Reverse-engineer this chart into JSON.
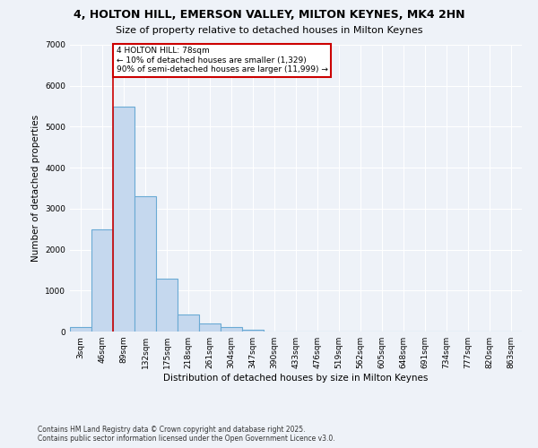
{
  "title_line1": "4, HOLTON HILL, EMERSON VALLEY, MILTON KEYNES, MK4 2HN",
  "title_line2": "Size of property relative to detached houses in Milton Keynes",
  "xlabel": "Distribution of detached houses by size in Milton Keynes",
  "ylabel": "Number of detached properties",
  "bar_color": "#c5d8ee",
  "bar_edge_color": "#6aaad4",
  "categories": [
    "3sqm",
    "46sqm",
    "89sqm",
    "132sqm",
    "175sqm",
    "218sqm",
    "261sqm",
    "304sqm",
    "347sqm",
    "390sqm",
    "433sqm",
    "476sqm",
    "519sqm",
    "562sqm",
    "605sqm",
    "648sqm",
    "691sqm",
    "734sqm",
    "777sqm",
    "820sqm",
    "863sqm"
  ],
  "values": [
    100,
    2500,
    5500,
    3300,
    1300,
    420,
    200,
    120,
    50,
    10,
    5,
    2,
    1,
    0,
    0,
    0,
    0,
    0,
    0,
    0,
    0
  ],
  "ylim": [
    0,
    7000
  ],
  "yticks": [
    0,
    1000,
    2000,
    3000,
    4000,
    5000,
    6000,
    7000
  ],
  "annotation_text": "4 HOLTON HILL: 78sqm\n← 10% of detached houses are smaller (1,329)\n90% of semi-detached houses are larger (11,999) →",
  "vline_color": "#cc0000",
  "background_color": "#eef2f8",
  "grid_color": "#ffffff",
  "footer_line1": "Contains HM Land Registry data © Crown copyright and database right 2025.",
  "footer_line2": "Contains public sector information licensed under the Open Government Licence v3.0.",
  "title_fontsize": 9,
  "subtitle_fontsize": 8,
  "axis_label_fontsize": 7.5,
  "tick_fontsize": 6.5,
  "annotation_fontsize": 6.5,
  "footer_fontsize": 5.5
}
